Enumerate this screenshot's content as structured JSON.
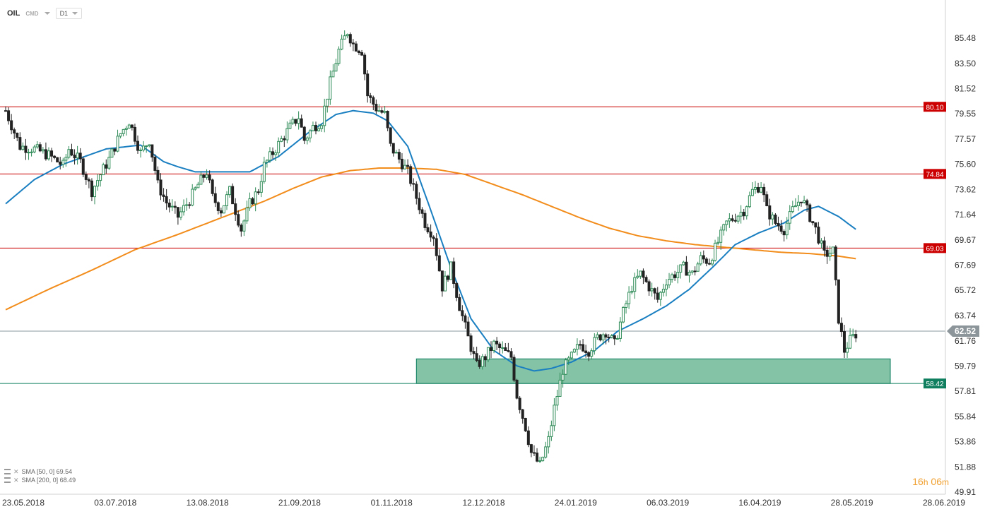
{
  "header": {
    "symbol": "OIL",
    "type": "CMD",
    "timeframe": "D1"
  },
  "legend": [
    {
      "label": "SMA [50, 0] 69.54"
    },
    {
      "label": "SMA [200, 0] 68.49"
    }
  ],
  "timer": {
    "hours": "16",
    "h_unit": "h",
    "minutes": "06",
    "m_unit": "m"
  },
  "colors": {
    "up": "#2e8b57",
    "down": "#222222",
    "sma50": "#1a7fc1",
    "sma200": "#f28c1b",
    "resistance": "#cc0000",
    "support": "#0f7f5f",
    "zone": "#6fb896"
  },
  "chart_data": {
    "type": "candlestick",
    "instrument": "OIL",
    "timeframe": "D1",
    "ylim": [
      49.91,
      87.5
    ],
    "y_ticks": [
      "85.48",
      "83.50",
      "81.52",
      "79.55",
      "77.57",
      "75.60",
      "73.62",
      "71.64",
      "69.67",
      "67.69",
      "65.72",
      "63.74",
      "61.76",
      "59.79",
      "57.81",
      "55.84",
      "53.86",
      "51.88",
      "49.91"
    ],
    "x_ticks": [
      "23.05.2018",
      "03.07.2018",
      "13.08.2018",
      "21.09.2018",
      "01.11.2018",
      "12.12.2018",
      "24.01.2019",
      "06.03.2019",
      "16.04.2019",
      "28.05.2019",
      "28.06.2019"
    ],
    "price_path": [
      [
        0,
        79.8
      ],
      [
        5,
        77.0
      ],
      [
        10,
        76.8
      ],
      [
        15,
        76.3
      ],
      [
        20,
        75.5
      ],
      [
        22,
        76.8
      ],
      [
        26,
        75.8
      ],
      [
        30,
        73.5
      ],
      [
        33,
        74.8
      ],
      [
        36,
        76.0
      ],
      [
        40,
        78.0
      ],
      [
        43,
        79.0
      ],
      [
        47,
        76.5
      ],
      [
        50,
        77.5
      ],
      [
        53,
        74.0
      ],
      [
        56,
        72.6
      ],
      [
        60,
        71.5
      ],
      [
        64,
        72.8
      ],
      [
        67,
        74.0
      ],
      [
        70,
        75.0
      ],
      [
        72,
        73.0
      ],
      [
        75,
        72.0
      ],
      [
        78,
        73.5
      ],
      [
        82,
        70.5
      ],
      [
        85,
        72.5
      ],
      [
        88,
        73.6
      ],
      [
        90,
        75.5
      ],
      [
        93,
        76.5
      ],
      [
        96,
        77.5
      ],
      [
        99,
        78.5
      ],
      [
        102,
        79.3
      ],
      [
        104,
        77.5
      ],
      [
        107,
        78.5
      ],
      [
        110,
        79.0
      ],
      [
        113,
        82.0
      ],
      [
        116,
        84.5
      ],
      [
        119,
        86.0
      ],
      [
        121,
        85.0
      ],
      [
        124,
        84.5
      ],
      [
        126,
        81.0
      ],
      [
        129,
        80.0
      ],
      [
        132,
        79.5
      ],
      [
        134,
        77.0
      ],
      [
        137,
        76.0
      ],
      [
        140,
        75.0
      ],
      [
        143,
        73.0
      ],
      [
        146,
        71.0
      ],
      [
        149,
        70.0
      ],
      [
        152,
        66.0
      ],
      [
        155,
        67.5
      ],
      [
        158,
        64.5
      ],
      [
        161,
        62.0
      ],
      [
        164,
        59.8
      ],
      [
        167,
        60.5
      ],
      [
        170,
        61.5
      ],
      [
        173,
        61.0
      ],
      [
        176,
        60.5
      ],
      [
        178,
        57.5
      ],
      [
        181,
        55.0
      ],
      [
        183,
        53.0
      ],
      [
        186,
        52.0
      ],
      [
        189,
        54.0
      ],
      [
        191,
        56.5
      ],
      [
        194,
        59.5
      ],
      [
        197,
        60.5
      ],
      [
        200,
        61.5
      ],
      [
        203,
        61.0
      ],
      [
        206,
        62.0
      ],
      [
        209,
        62.5
      ],
      [
        212,
        61.5
      ],
      [
        215,
        64.0
      ],
      [
        218,
        66.0
      ],
      [
        221,
        67.0
      ],
      [
        224,
        66.0
      ],
      [
        227,
        65.0
      ],
      [
        230,
        66.5
      ],
      [
        233,
        67.0
      ],
      [
        236,
        67.5
      ],
      [
        239,
        67.0
      ],
      [
        242,
        68.2
      ],
      [
        245,
        68.0
      ],
      [
        248,
        69.5
      ],
      [
        251,
        71.0
      ],
      [
        254,
        71.5
      ],
      [
        257,
        72.0
      ],
      [
        260,
        73.5
      ],
      [
        263,
        74.0
      ],
      [
        265,
        72.0
      ],
      [
        268,
        71.0
      ],
      [
        271,
        70.5
      ],
      [
        274,
        72.0
      ],
      [
        277,
        73.0
      ],
      [
        279,
        72.0
      ],
      [
        282,
        70.5
      ],
      [
        285,
        68.5
      ],
      [
        288,
        68.8
      ],
      [
        290,
        63.5
      ],
      [
        292,
        61.0
      ],
      [
        294,
        61.8
      ],
      [
        296,
        62.3
      ]
    ],
    "sma50_path": [
      [
        0,
        72.5
      ],
      [
        10,
        74.4
      ],
      [
        20,
        75.6
      ],
      [
        35,
        76.8
      ],
      [
        47,
        77.1
      ],
      [
        55,
        75.8
      ],
      [
        60,
        75.4
      ],
      [
        66,
        75.0
      ],
      [
        75,
        75.0
      ],
      [
        85,
        75.0
      ],
      [
        95,
        76.2
      ],
      [
        105,
        78.0
      ],
      [
        115,
        79.5
      ],
      [
        121,
        79.8
      ],
      [
        128,
        79.6
      ],
      [
        133,
        79.0
      ],
      [
        140,
        77.0
      ],
      [
        148,
        72.0
      ],
      [
        155,
        67.5
      ],
      [
        162,
        63.5
      ],
      [
        170,
        61.0
      ],
      [
        178,
        59.8
      ],
      [
        184,
        59.4
      ],
      [
        190,
        59.6
      ],
      [
        197,
        60.1
      ],
      [
        205,
        61.0
      ],
      [
        213,
        62.5
      ],
      [
        222,
        63.5
      ],
      [
        230,
        64.5
      ],
      [
        238,
        65.8
      ],
      [
        246,
        67.5
      ],
      [
        254,
        69.3
      ],
      [
        262,
        70.2
      ],
      [
        271,
        71.0
      ],
      [
        278,
        72.0
      ],
      [
        283,
        72.3
      ],
      [
        290,
        71.5
      ],
      [
        296,
        70.5
      ]
    ],
    "sma200_path": [
      [
        0,
        64.2
      ],
      [
        15,
        65.8
      ],
      [
        30,
        67.3
      ],
      [
        45,
        68.9
      ],
      [
        60,
        70.1
      ],
      [
        75,
        71.4
      ],
      [
        90,
        72.7
      ],
      [
        100,
        73.7
      ],
      [
        110,
        74.6
      ],
      [
        120,
        75.1
      ],
      [
        130,
        75.3
      ],
      [
        140,
        75.3
      ],
      [
        150,
        75.2
      ],
      [
        160,
        74.8
      ],
      [
        170,
        74.0
      ],
      [
        180,
        73.2
      ],
      [
        190,
        72.3
      ],
      [
        200,
        71.4
      ],
      [
        210,
        70.6
      ],
      [
        220,
        70.0
      ],
      [
        230,
        69.6
      ],
      [
        240,
        69.3
      ],
      [
        250,
        69.1
      ],
      [
        260,
        68.9
      ],
      [
        270,
        68.7
      ],
      [
        280,
        68.6
      ],
      [
        290,
        68.4
      ],
      [
        296,
        68.2
      ]
    ],
    "levels": [
      {
        "name": "resistance-80-10",
        "value": 80.1,
        "label": "80.10",
        "kind": "resistance"
      },
      {
        "name": "resistance-74-84",
        "value": 74.84,
        "label": "74.84",
        "kind": "resistance"
      },
      {
        "name": "resistance-69-03",
        "value": 69.03,
        "label": "69.03",
        "kind": "resistance"
      },
      {
        "name": "support-58-42",
        "value": 58.42,
        "label": "58.42",
        "kind": "support"
      }
    ],
    "current_price": {
      "value": 62.52,
      "label": "62.52"
    },
    "support_zone": {
      "low": 58.42,
      "high": 60.35,
      "start_bar": 143,
      "end_bar": 308
    }
  }
}
